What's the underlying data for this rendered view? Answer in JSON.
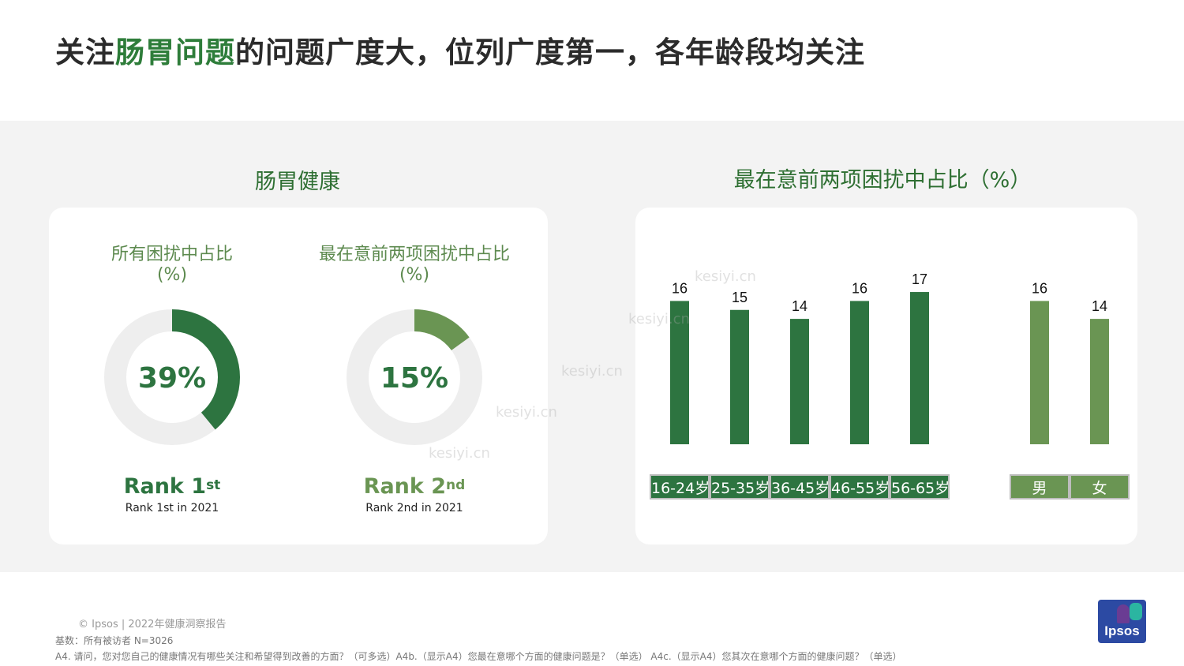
{
  "title": {
    "prefix": "关注",
    "highlight": "肠胃问题",
    "suffix": "的问题广度大，位列广度第一，各年龄段均关注"
  },
  "left_section": {
    "title": "肠胃健康",
    "donuts": [
      {
        "label_line1": "所有困扰中占比",
        "label_line2": "(%)",
        "value": 39,
        "value_text": "39%",
        "color": "#2d7440",
        "track_color": "#eeeeee",
        "rank_text": "Rank 1",
        "rank_sup": "st",
        "rank_sub": "Rank 1st in 2021"
      },
      {
        "label_line1": "最在意前两项困扰中占比",
        "label_line2": "(%)",
        "value": 15,
        "value_text": "15%",
        "color": "#6a9553",
        "track_color": "#eeeeee",
        "rank_text": "Rank 2",
        "rank_sup": "nd",
        "rank_sub": "Rank 2nd in 2021"
      }
    ]
  },
  "right_section": {
    "title": "最在意前两项困扰中占比（%）"
  },
  "chart_data": {
    "type": "bar",
    "title": "最在意前两项困扰中占比（%）",
    "groups": [
      {
        "categories": [
          "16-24岁",
          "25-35岁",
          "36-45岁",
          "46-55岁",
          "56-65岁"
        ],
        "values": [
          16,
          15,
          14,
          16,
          17
        ],
        "color": "#2d7440"
      },
      {
        "categories": [
          "男",
          "女"
        ],
        "values": [
          16,
          14
        ],
        "color": "#6a9553"
      }
    ],
    "ylim": [
      0,
      20
    ],
    "grid": false
  },
  "watermark": "kesiyi.cn",
  "footer": {
    "copyright": "© Ipsos | 2022年健康洞察报告",
    "base": "基数：所有被访者  N=3026",
    "note": "A4. 请问，您对您自己的健康情况有哪些关注和希望得到改善的方面？（可多选）A4b.（显示A4）您最在意哪个方面的健康问题是？（单选） A4c.（显示A4）您其次在意哪个方面的健康问题？（单选）",
    "logo_text": "Ipsos"
  }
}
